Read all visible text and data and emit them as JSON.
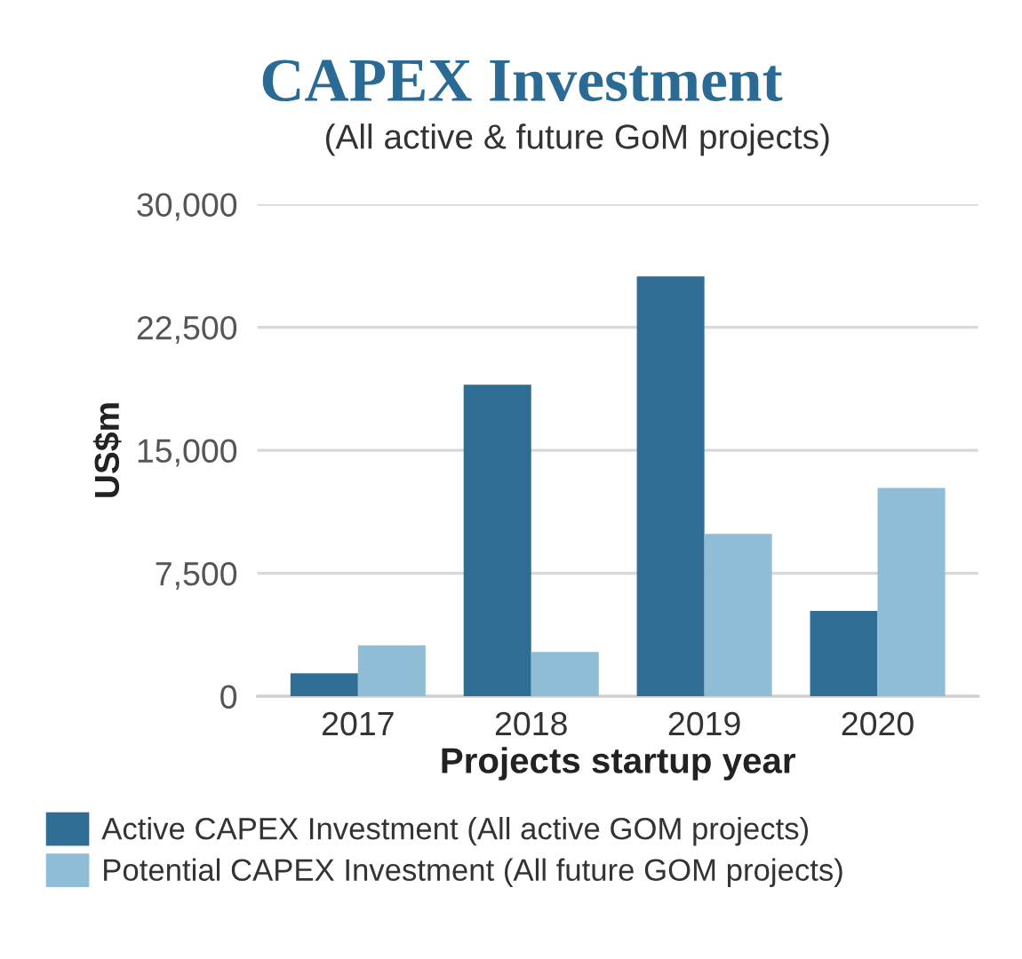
{
  "chart_data": {
    "type": "bar",
    "title": "CAPEX Investment",
    "subtitle": "(All active & future GoM projects)",
    "xlabel": "Projects startup year",
    "ylabel": "US$m",
    "categories": [
      "2017",
      "2018",
      "2019",
      "2020"
    ],
    "series": [
      {
        "name": "Active CAPEX Investment (All active GOM projects)",
        "color": "#306d94",
        "values": [
          1400,
          19000,
          25600,
          5200
        ]
      },
      {
        "name": "Potential CAPEX Investment (All future GOM projects)",
        "color": "#8fbdd5",
        "values": [
          3100,
          2700,
          9900,
          12700
        ]
      }
    ],
    "ylim": [
      0,
      30000
    ],
    "yticks": [
      {
        "value": 0,
        "label": "0"
      },
      {
        "value": 7500,
        "label": "7,500"
      },
      {
        "value": 15000,
        "label": "15,000"
      },
      {
        "value": 22500,
        "label": "22,500"
      },
      {
        "value": 30000,
        "label": "30,000"
      }
    ],
    "grid": "y",
    "legend": "bottom"
  }
}
